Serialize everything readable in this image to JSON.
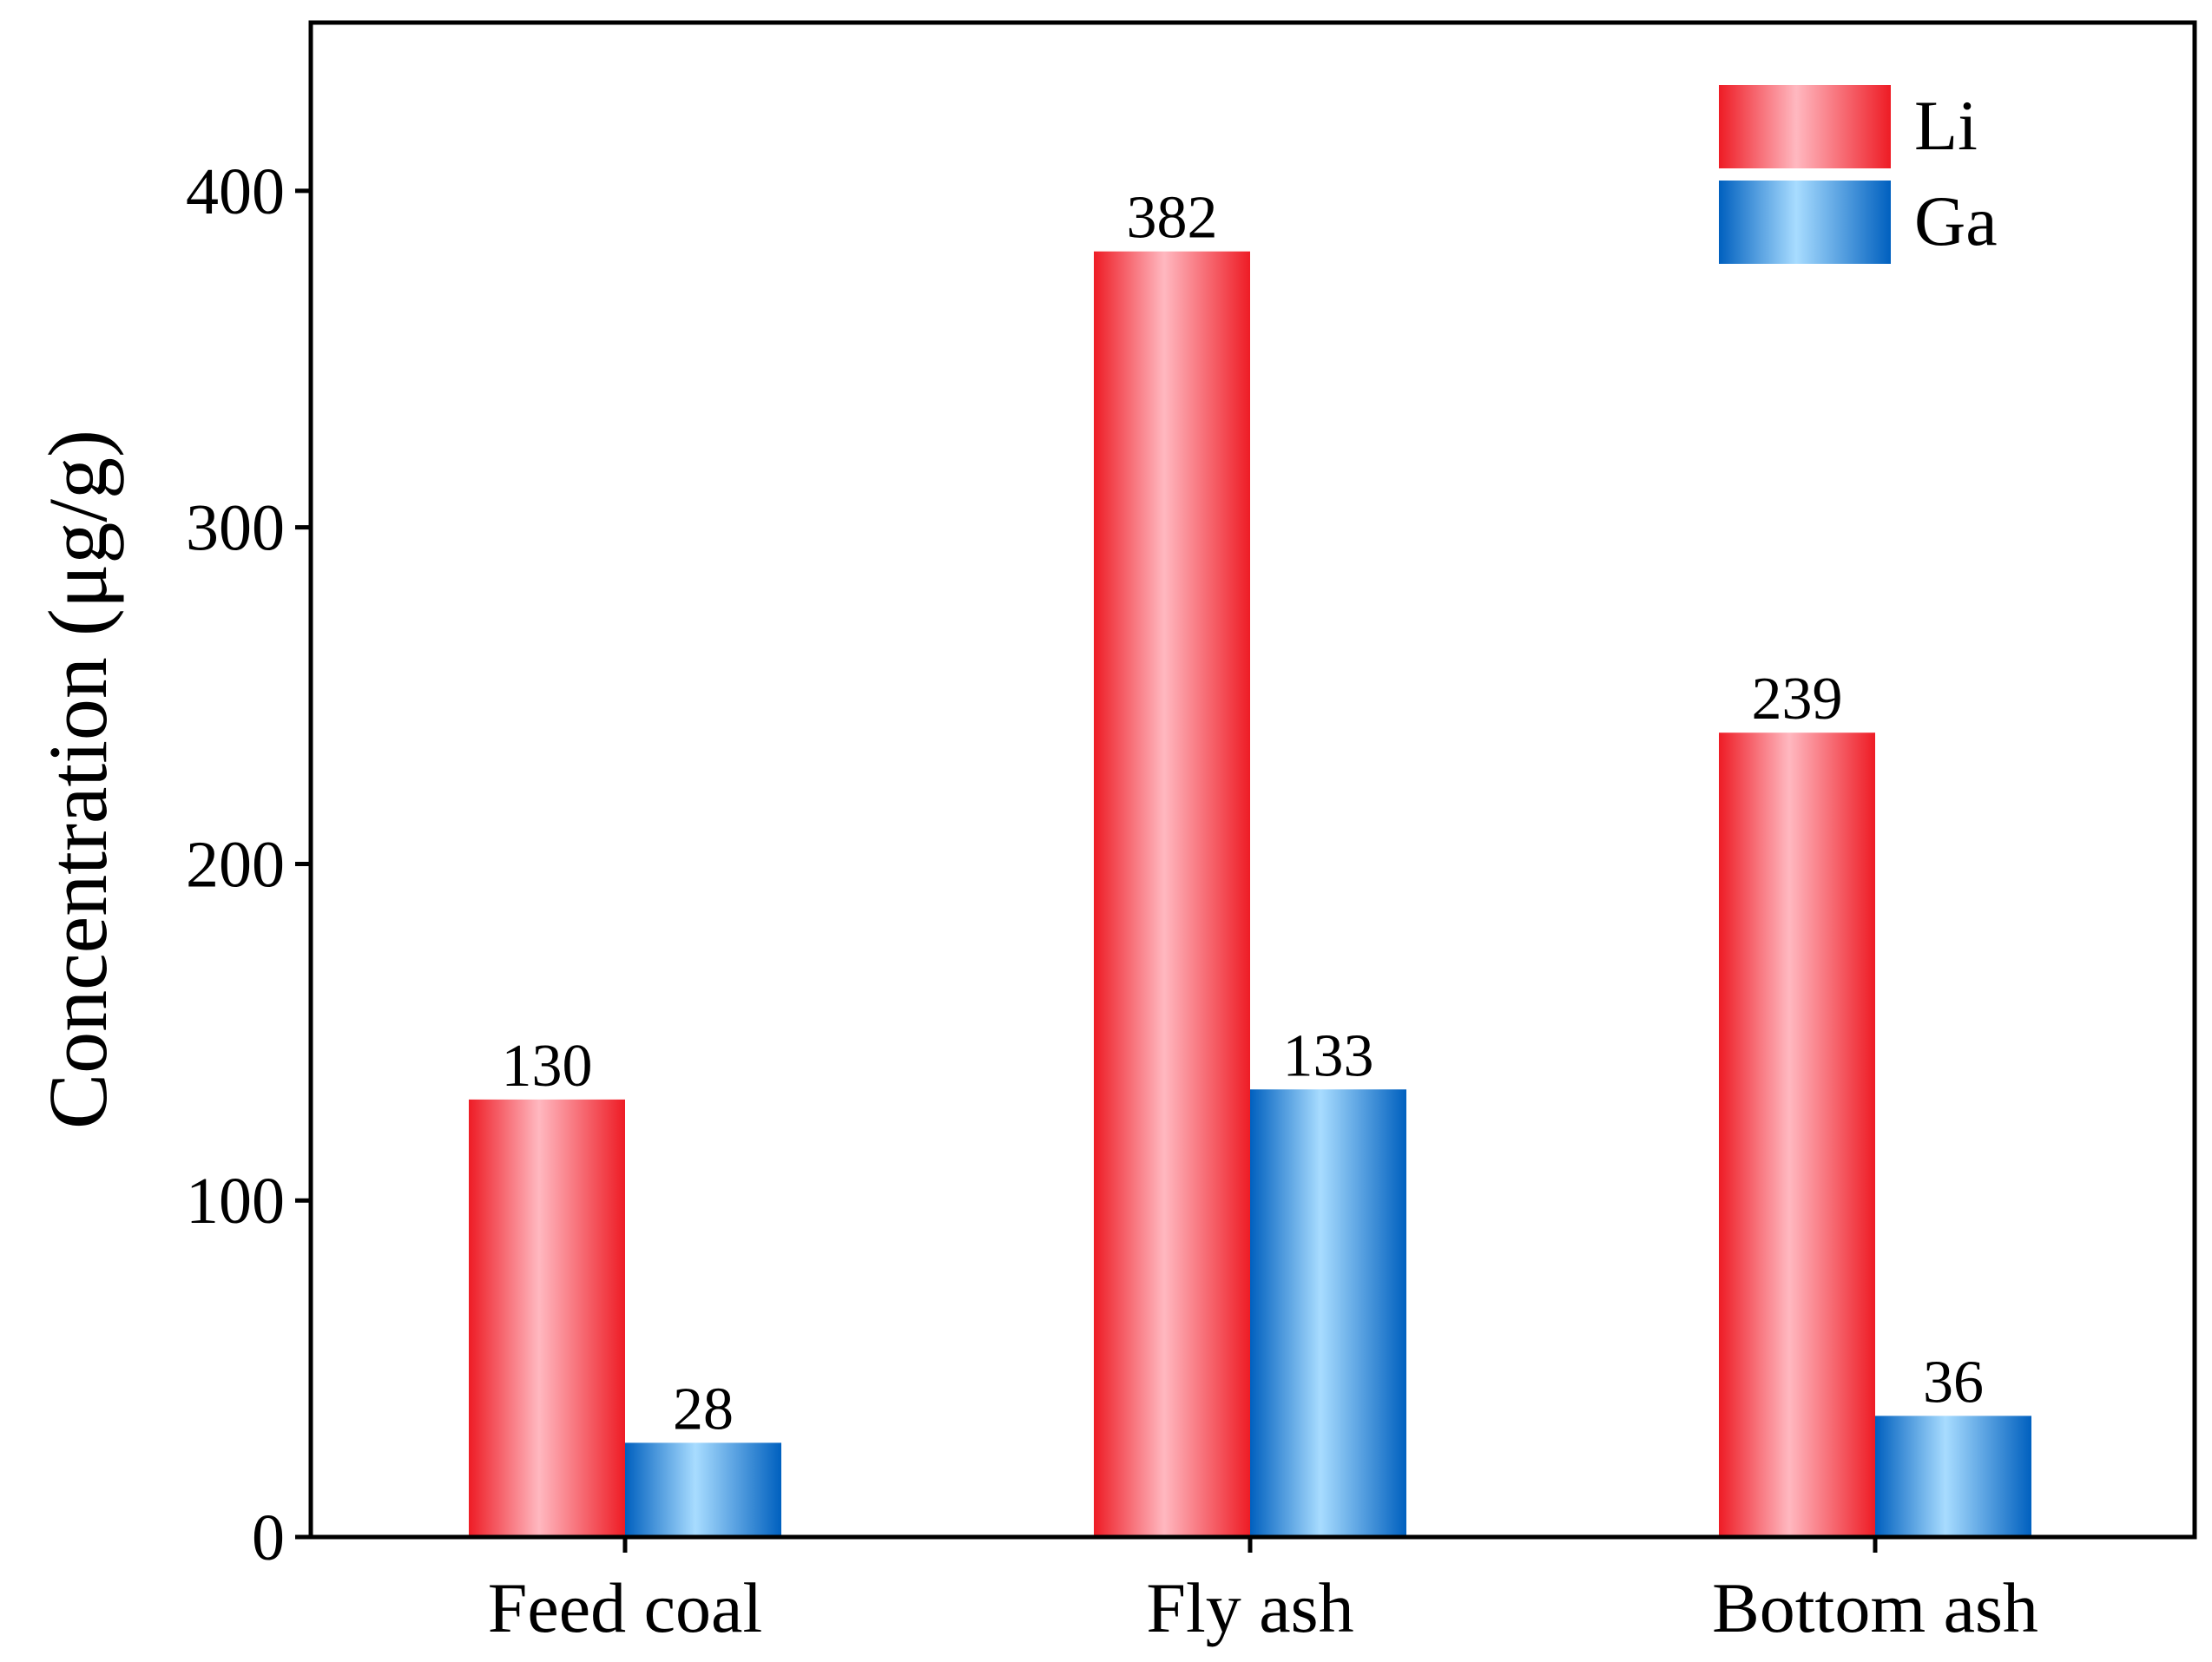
{
  "chart_data": {
    "type": "bar",
    "title": "",
    "xlabel": "",
    "ylabel": "Concentration (μg/g)",
    "ylim": [
      0,
      450
    ],
    "yticks": [
      0,
      100,
      200,
      300,
      400
    ],
    "grid": false,
    "legend_position": "top-right",
    "categories": [
      "Feed coal",
      "Fly ash",
      "Bottom ash"
    ],
    "series": [
      {
        "name": "Li",
        "values": [
          130,
          382,
          239
        ],
        "color": "#ee1c25",
        "highlight": "#ffb8c0"
      },
      {
        "name": "Ga",
        "values": [
          28,
          133,
          36
        ],
        "color": "#0060bf",
        "highlight": "#a8dcff"
      }
    ]
  }
}
